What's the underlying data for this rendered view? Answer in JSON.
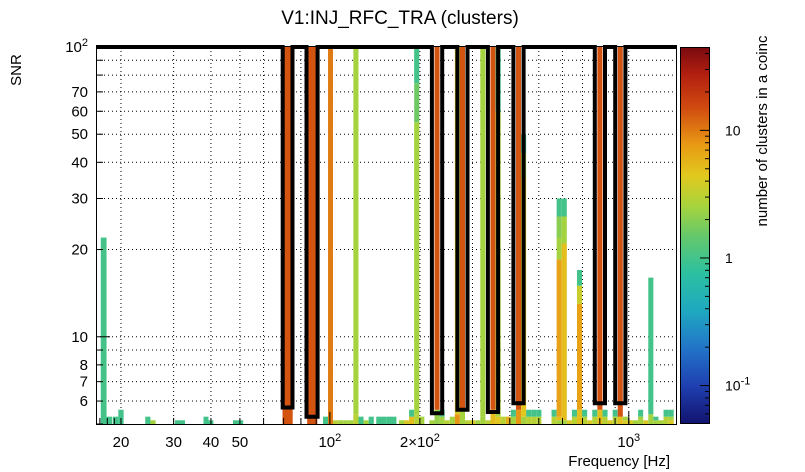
{
  "chart_data": {
    "type": "heatmap",
    "title": "V1:INJ_RFC_TRA (clusters)",
    "xlabel": "Frequency [Hz]",
    "ylabel": "SNR",
    "zlabel": "number of clusters in a coinc",
    "x_scale": "log",
    "y_scale": "log",
    "z_scale": "log",
    "xlim": [
      16.5,
      1450
    ],
    "ylim": [
      5.0,
      100
    ],
    "zlim": [
      0.05,
      45
    ],
    "x_tick_labels": [
      {
        "value": 20,
        "label": "20"
      },
      {
        "value": 30,
        "label": "30"
      },
      {
        "value": 40,
        "label": "40"
      },
      {
        "value": 50,
        "label": "50"
      },
      {
        "value": 100,
        "label": "10^2"
      },
      {
        "value": 200,
        "label": "2×10^2"
      },
      {
        "value": 1000,
        "label": "10^3"
      }
    ],
    "y_tick_labels": [
      {
        "value": 6,
        "label": "6"
      },
      {
        "value": 7,
        "label": "7"
      },
      {
        "value": 8,
        "label": "8"
      },
      {
        "value": 10,
        "label": "10"
      },
      {
        "value": 20,
        "label": "20"
      },
      {
        "value": 30,
        "label": "30"
      },
      {
        "value": 40,
        "label": "40"
      },
      {
        "value": 50,
        "label": "50"
      },
      {
        "value": 60,
        "label": "60"
      },
      {
        "value": 70,
        "label": "70"
      },
      {
        "value": 100,
        "label": "10^2"
      }
    ],
    "z_tick_labels": [
      {
        "value": 0.1,
        "label": "10^-1"
      },
      {
        "value": 1,
        "label": "1"
      },
      {
        "value": 10,
        "label": "10"
      }
    ],
    "columns": [
      {
        "f": 17.5,
        "cells": [
          [
            5.0,
            22.0,
            1.0
          ]
        ]
      },
      {
        "f": 18.3,
        "cells": [
          [
            5.0,
            5.3,
            1.0
          ]
        ]
      },
      {
        "f": 19.2,
        "cells": [
          [
            5.0,
            5.3,
            1.0
          ]
        ]
      },
      {
        "f": 20.0,
        "cells": [
          [
            5.0,
            5.6,
            1.0
          ]
        ]
      },
      {
        "f": 24.6,
        "cells": [
          [
            5.0,
            5.3,
            1.0
          ]
        ]
      },
      {
        "f": 25.6,
        "cells": [
          [
            5.0,
            5.15,
            2.5
          ]
        ]
      },
      {
        "f": 31.5,
        "cells": [
          [
            5.0,
            5.15,
            1.0
          ]
        ]
      },
      {
        "f": 38.5,
        "cells": [
          [
            5.0,
            5.3,
            1.0
          ]
        ]
      },
      {
        "f": 40.0,
        "cells": [
          [
            5.0,
            5.15,
            1.0
          ]
        ]
      },
      {
        "f": 49.3,
        "cells": [
          [
            5.0,
            5.15,
            1.0
          ]
        ]
      },
      {
        "f": 72.2,
        "cells": [
          [
            5.0,
            100,
            14
          ]
        ]
      },
      {
        "f": 87.3,
        "cells": [
          [
            5.0,
            100,
            14
          ]
        ]
      },
      {
        "f": 96.7,
        "cells": [
          [
            5.0,
            5.3,
            1.0
          ]
        ]
      },
      {
        "f": 100.5,
        "cells": [
          [
            5.0,
            100,
            10
          ]
        ]
      },
      {
        "f": 104.5,
        "cells": [
          [
            5.0,
            5.15,
            3.0
          ]
        ]
      },
      {
        "f": 108.7,
        "cells": [
          [
            5.0,
            5.15,
            2.5
          ]
        ]
      },
      {
        "f": 113.0,
        "cells": [
          [
            5.0,
            5.15,
            2.5
          ]
        ]
      },
      {
        "f": 117.5,
        "cells": [
          [
            5.0,
            5.15,
            2.5
          ]
        ]
      },
      {
        "f": 122.2,
        "cells": [
          [
            5.0,
            5.4,
            3.0
          ],
          [
            5.4,
            100,
            2.5
          ]
        ]
      },
      {
        "f": 127.1,
        "cells": [
          [
            5.0,
            5.3,
            1.0
          ]
        ]
      },
      {
        "f": 132.2,
        "cells": [
          [
            5.0,
            5.15,
            2.5
          ]
        ]
      },
      {
        "f": 137.5,
        "cells": [
          [
            5.0,
            5.3,
            1.0
          ]
        ]
      },
      {
        "f": 148.6,
        "cells": [
          [
            5.0,
            5.3,
            1.0
          ]
        ]
      },
      {
        "f": 160.6,
        "cells": [
          [
            5.0,
            5.3,
            1.0
          ]
        ]
      },
      {
        "f": 173.6,
        "cells": [
          [
            5.0,
            5.15,
            2.5
          ]
        ]
      },
      {
        "f": 180.5,
        "cells": [
          [
            5.0,
            5.15,
            4.0
          ]
        ]
      },
      {
        "f": 187.7,
        "cells": [
          [
            5.0,
            5.3,
            5.0
          ],
          [
            5.3,
            5.6,
            1.0
          ]
        ]
      },
      {
        "f": 195.2,
        "cells": [
          [
            5.0,
            5.4,
            3.0
          ],
          [
            5.4,
            55,
            2.5
          ],
          [
            55,
            75,
            1.6
          ],
          [
            75,
            100,
            1.0
          ]
        ]
      },
      {
        "f": 203.0,
        "cells": [
          [
            5.0,
            5.3,
            2.5
          ]
        ]
      },
      {
        "f": 219.5,
        "cells": [
          [
            5.0,
            5.15,
            2.5
          ]
        ]
      },
      {
        "f": 228.3,
        "cells": [
          [
            5.0,
            5.6,
            2.2
          ],
          [
            5.6,
            100,
            14
          ]
        ]
      },
      {
        "f": 237.4,
        "cells": [
          [
            5.0,
            5.3,
            2.5
          ],
          [
            5.3,
            5.6,
            1.0
          ]
        ]
      },
      {
        "f": 246.9,
        "cells": [
          [
            5.0,
            5.15,
            3.0
          ]
        ]
      },
      {
        "f": 256.8,
        "cells": [
          [
            5.0,
            5.3,
            2.5
          ]
        ]
      },
      {
        "f": 267.0,
        "cells": [
          [
            5.0,
            5.4,
            8.0
          ],
          [
            5.4,
            100,
            4.0
          ]
        ]
      },
      {
        "f": 277.7,
        "cells": [
          [
            5.0,
            5.6,
            2.5
          ],
          [
            5.6,
            100,
            14
          ]
        ]
      },
      {
        "f": 288.8,
        "cells": [
          [
            5.0,
            5.15,
            3.0
          ]
        ]
      },
      {
        "f": 300.4,
        "cells": [
          [
            5.0,
            5.15,
            4.0
          ]
        ]
      },
      {
        "f": 312.4,
        "cells": [
          [
            5.0,
            5.15,
            2.5
          ]
        ]
      },
      {
        "f": 324.9,
        "cells": [
          [
            5.0,
            5.3,
            2.5
          ],
          [
            5.3,
            100,
            2.5
          ]
        ]
      },
      {
        "f": 337.9,
        "cells": [
          [
            5.0,
            5.15,
            3.0
          ]
        ]
      },
      {
        "f": 351.4,
        "cells": [
          [
            5.0,
            5.6,
            5.0
          ],
          [
            5.6,
            100,
            14
          ]
        ]
      },
      {
        "f": 365.5,
        "cells": [
          [
            5.0,
            5.3,
            4.5
          ],
          [
            5.3,
            60,
            2.5
          ],
          [
            60,
            100,
            1.0
          ]
        ]
      },
      {
        "f": 380.1,
        "cells": [
          [
            5.0,
            5.3,
            3.0
          ]
        ]
      },
      {
        "f": 395.3,
        "cells": [
          [
            5.0,
            5.3,
            6.0
          ]
        ]
      },
      {
        "f": 411.1,
        "cells": [
          [
            5.0,
            5.3,
            2.5
          ],
          [
            5.3,
            5.6,
            1.0
          ]
        ]
      },
      {
        "f": 427.6,
        "cells": [
          [
            5.0,
            5.6,
            8.0
          ],
          [
            5.6,
            100,
            14
          ]
        ]
      },
      {
        "f": 444.7,
        "cells": [
          [
            5.0,
            5.3,
            2.5
          ],
          [
            5.3,
            35,
            4.5
          ],
          [
            35,
            43,
            2.5
          ],
          [
            43,
            50,
            1.0
          ]
        ]
      },
      {
        "f": 462.4,
        "cells": [
          [
            5.0,
            5.3,
            3.0
          ],
          [
            5.3,
            5.6,
            1.0
          ]
        ]
      },
      {
        "f": 480.9,
        "cells": [
          [
            5.0,
            5.3,
            3.0
          ],
          [
            5.3,
            5.6,
            1.0
          ]
        ]
      },
      {
        "f": 500.2,
        "cells": [
          [
            5.0,
            5.3,
            3.0
          ],
          [
            5.3,
            5.6,
            1.0
          ]
        ]
      },
      {
        "f": 562.5,
        "cells": [
          [
            5.0,
            5.3,
            3.0
          ],
          [
            5.3,
            5.6,
            1.0
          ]
        ]
      },
      {
        "f": 585.0,
        "cells": [
          [
            5.0,
            5.15,
            2.5
          ],
          [
            5.15,
            5.3,
            5.0
          ],
          [
            5.3,
            18.5,
            7.0
          ],
          [
            18.5,
            22,
            2.5
          ],
          [
            22,
            26,
            2.0
          ],
          [
            26,
            30,
            1.0
          ]
        ]
      },
      {
        "f": 608.4,
        "cells": [
          [
            5.0,
            5.15,
            2.5
          ],
          [
            5.15,
            21,
            5.0
          ],
          [
            21,
            26,
            2.5
          ],
          [
            26,
            30,
            1.0
          ]
        ]
      },
      {
        "f": 632.7,
        "cells": [
          [
            5.0,
            5.15,
            4.0
          ]
        ]
      },
      {
        "f": 658.0,
        "cells": [
          [
            5.0,
            5.3,
            3.0
          ],
          [
            5.3,
            5.6,
            1.0
          ]
        ]
      },
      {
        "f": 684.3,
        "cells": [
          [
            5.0,
            5.6,
            5.0
          ],
          [
            5.6,
            13,
            7.0
          ],
          [
            13,
            15,
            3.5
          ],
          [
            15,
            17,
            1.0
          ]
        ]
      },
      {
        "f": 711.7,
        "cells": [
          [
            5.0,
            5.3,
            3.0
          ],
          [
            5.3,
            5.6,
            1.0
          ]
        ]
      },
      {
        "f": 740.2,
        "cells": [
          [
            5.0,
            5.15,
            4.0
          ]
        ]
      },
      {
        "f": 769.8,
        "cells": [
          [
            5.0,
            5.3,
            3.0
          ],
          [
            5.3,
            5.6,
            1.0
          ]
        ]
      },
      {
        "f": 800.6,
        "cells": [
          [
            5.0,
            5.6,
            5.0
          ],
          [
            5.6,
            100,
            14
          ]
        ]
      },
      {
        "f": 832.6,
        "cells": [
          [
            5.0,
            5.3,
            3.0
          ],
          [
            5.3,
            5.6,
            1.0
          ]
        ]
      },
      {
        "f": 865.9,
        "cells": [
          [
            5.0,
            5.15,
            4.0
          ]
        ]
      },
      {
        "f": 900.6,
        "cells": [
          [
            5.0,
            5.3,
            3.0
          ],
          [
            5.3,
            5.6,
            1.0
          ]
        ]
      },
      {
        "f": 936.6,
        "cells": [
          [
            5.0,
            5.3,
            5.0
          ],
          [
            5.3,
            100,
            14
          ]
        ]
      },
      {
        "f": 974.1,
        "cells": [
          [
            5.0,
            5.15,
            4.0
          ],
          [
            5.15,
            5.3,
            2.5
          ]
        ]
      },
      {
        "f": 1013.0,
        "cells": [
          [
            5.0,
            5.15,
            4.0
          ]
        ]
      },
      {
        "f": 1053.5,
        "cells": [
          [
            5.0,
            5.15,
            2.5
          ]
        ]
      },
      {
        "f": 1095.7,
        "cells": [
          [
            5.0,
            5.3,
            2.5
          ],
          [
            5.3,
            5.6,
            1.0
          ]
        ]
      },
      {
        "f": 1139.5,
        "cells": [
          [
            5.0,
            5.15,
            4.0
          ]
        ]
      },
      {
        "f": 1185.1,
        "cells": [
          [
            5.0,
            5.4,
            2.5
          ],
          [
            5.4,
            16,
            1.0
          ]
        ]
      },
      {
        "f": 1232.5,
        "cells": [
          [
            5.0,
            5.15,
            2.5
          ],
          [
            5.15,
            5.3,
            1.0
          ]
        ]
      },
      {
        "f": 1281.8,
        "cells": [
          [
            5.0,
            5.15,
            2.5
          ]
        ]
      },
      {
        "f": 1333.1,
        "cells": [
          [
            5.0,
            5.3,
            3.0
          ],
          [
            5.3,
            5.6,
            1.0
          ]
        ]
      },
      {
        "f": 1386.4,
        "cells": [
          [
            5.0,
            5.15,
            4.0
          ],
          [
            5.15,
            5.3,
            2.5
          ],
          [
            5.3,
            5.6,
            1.0
          ]
        ]
      }
    ],
    "coinc_outline": [
      [
        16.5,
        100
      ],
      [
        69.5,
        100
      ],
      [
        69.5,
        5.7
      ],
      [
        75.0,
        5.7
      ],
      [
        75.0,
        100
      ],
      [
        83.5,
        100
      ],
      [
        83.5,
        5.3
      ],
      [
        91.0,
        5.3
      ],
      [
        91.0,
        100
      ],
      [
        219.5,
        100
      ],
      [
        219.5,
        5.45
      ],
      [
        237.5,
        5.45
      ],
      [
        237.5,
        100
      ],
      [
        267.0,
        100
      ],
      [
        267.0,
        5.6
      ],
      [
        288.8,
        5.6
      ],
      [
        288.8,
        100
      ],
      [
        337.9,
        100
      ],
      [
        337.9,
        5.5
      ],
      [
        365.5,
        5.5
      ],
      [
        365.5,
        100
      ],
      [
        411.1,
        100
      ],
      [
        411.1,
        5.9
      ],
      [
        444.7,
        5.9
      ],
      [
        444.7,
        100
      ],
      [
        769.8,
        100
      ],
      [
        769.8,
        5.9
      ],
      [
        832.6,
        5.9
      ],
      [
        832.6,
        100
      ],
      [
        900.6,
        100
      ],
      [
        900.6,
        5.9
      ],
      [
        974.1,
        5.9
      ],
      [
        974.1,
        100
      ],
      [
        1450,
        100
      ]
    ]
  }
}
